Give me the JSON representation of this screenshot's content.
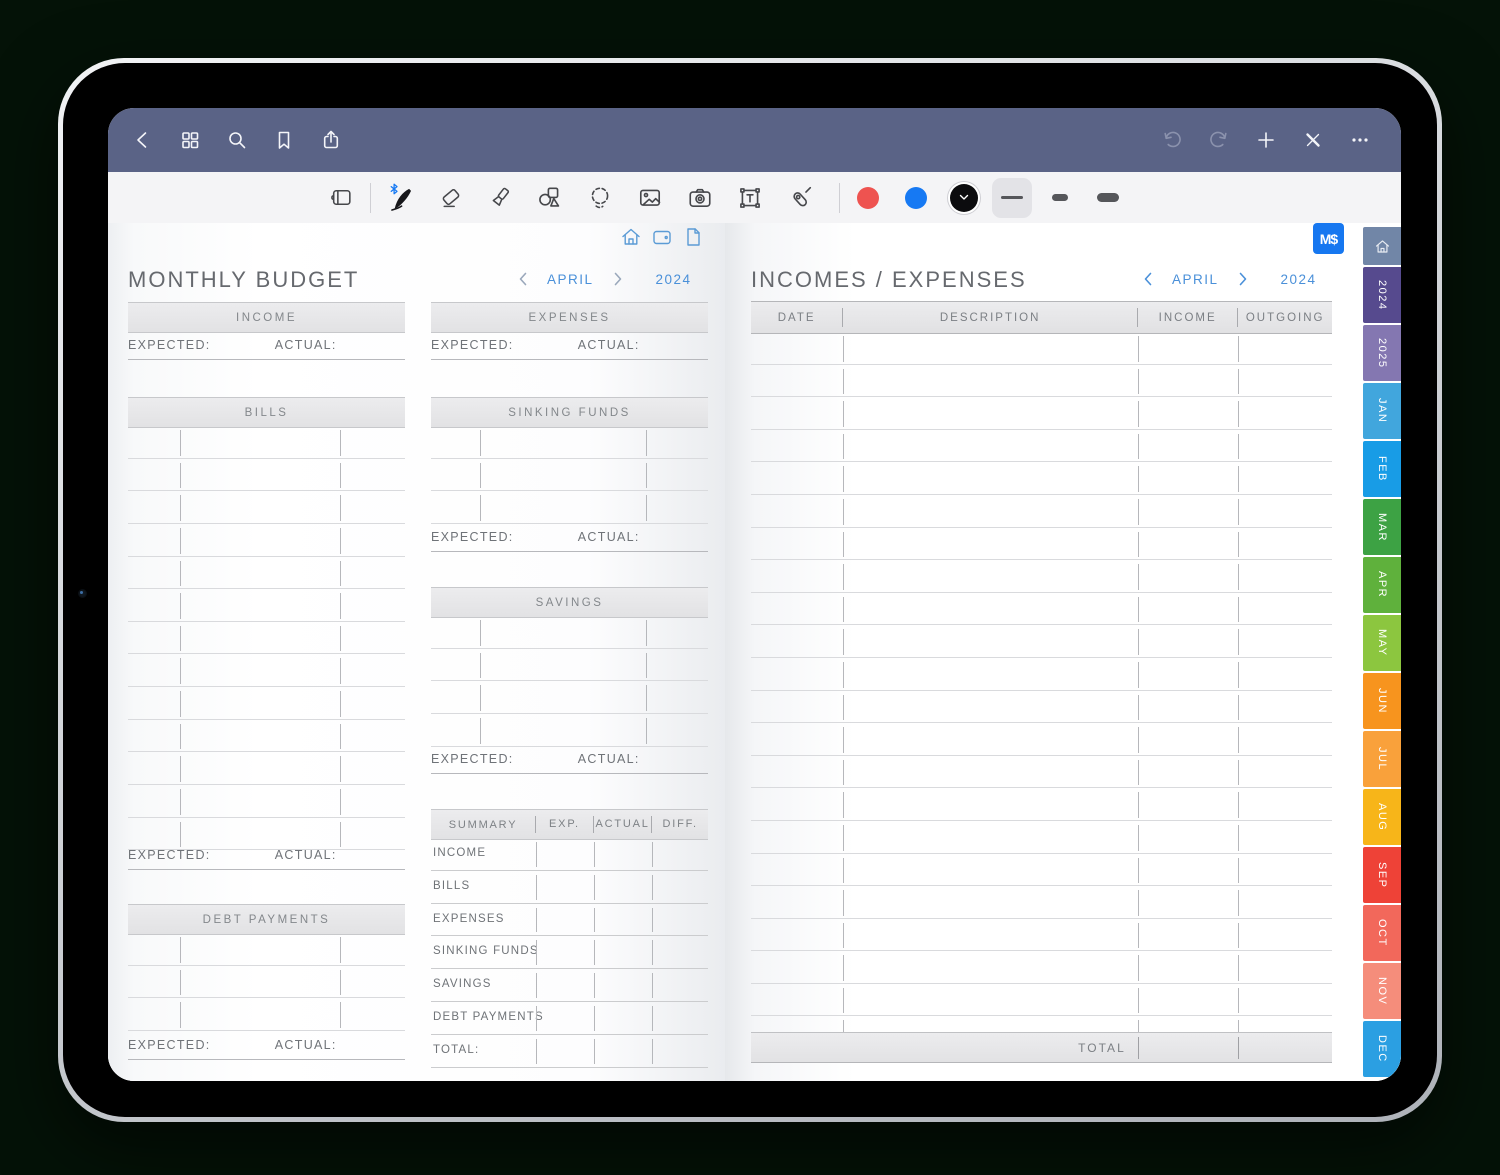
{
  "chrome": {
    "navbar_icons_left": [
      "back",
      "grid-view",
      "search",
      "bookmark",
      "share"
    ],
    "navbar_icons_right": [
      "undo",
      "redo",
      "add-page",
      "pen-off",
      "more"
    ],
    "tool_icons": [
      "pages-panel",
      "bluetooth-pen",
      "eraser",
      "highlighter",
      "shapes",
      "lasso",
      "image",
      "camera",
      "text-box",
      "laser-pointer"
    ],
    "pen_colors": [
      "#EE5350",
      "#1679F3",
      "#0C0C0E"
    ],
    "selected_color_index": 2,
    "stroke_sizes": [
      "thin",
      "medium",
      "thick"
    ],
    "selected_stroke_index": 0,
    "navbar_color": "#5A6386"
  },
  "badge": {
    "label": "M$",
    "color": "#1677F0"
  },
  "nav": {
    "month": "APRIL",
    "year": "2024",
    "accent": "#4A90D9"
  },
  "labels": {
    "expected": "EXPECTED:",
    "actual": "ACTUAL:"
  },
  "mini_icons": [
    "home",
    "wallet",
    "document"
  ],
  "left_page": {
    "title": "MONTHLY BUDGET",
    "income_header": "INCOME",
    "bills_header": "BILLS",
    "bills_rows": 13,
    "debt_header": "DEBT PAYMENTS",
    "debt_rows": 3
  },
  "middle_page": {
    "expenses_header": "EXPENSES",
    "sinking_header": "SINKING FUNDS",
    "sinking_rows": 3,
    "savings_header": "SAVINGS",
    "savings_rows": 4,
    "summary": {
      "headers": [
        "SUMMARY",
        "EXP.",
        "ACTUAL",
        "DIFF."
      ],
      "rows": [
        "INCOME",
        "BILLS",
        "EXPENSES",
        "SINKING FUNDS",
        "SAVINGS",
        "DEBT PAYMENTS",
        "TOTAL:"
      ]
    }
  },
  "right_page": {
    "title": "INCOMES / EXPENSES",
    "columns": [
      "DATE",
      "DESCRIPTION",
      "INCOME",
      "OUTGOING"
    ],
    "rows": 22,
    "total_label": "TOTAL"
  },
  "sidebar": {
    "tabs": [
      {
        "label": "",
        "icon": "home",
        "color": "#7186A7"
      },
      {
        "label": "2024",
        "color": "#564A8E"
      },
      {
        "label": "2025",
        "color": "#8477B1"
      },
      {
        "label": "JAN",
        "color": "#41A6DD"
      },
      {
        "label": "FEB",
        "color": "#189CE6"
      },
      {
        "label": "MAR",
        "color": "#3DA244"
      },
      {
        "label": "APR",
        "color": "#5FB13C"
      },
      {
        "label": "MAY",
        "color": "#8CC63F"
      },
      {
        "label": "JUN",
        "color": "#F7941E"
      },
      {
        "label": "JUL",
        "color": "#F9A13B"
      },
      {
        "label": "AUG",
        "color": "#F7B519"
      },
      {
        "label": "SEP",
        "color": "#EE4237"
      },
      {
        "label": "OCT",
        "color": "#F2685B"
      },
      {
        "label": "NOV",
        "color": "#F58D7B"
      },
      {
        "label": "DEC",
        "color": "#2B9FE2"
      }
    ]
  }
}
